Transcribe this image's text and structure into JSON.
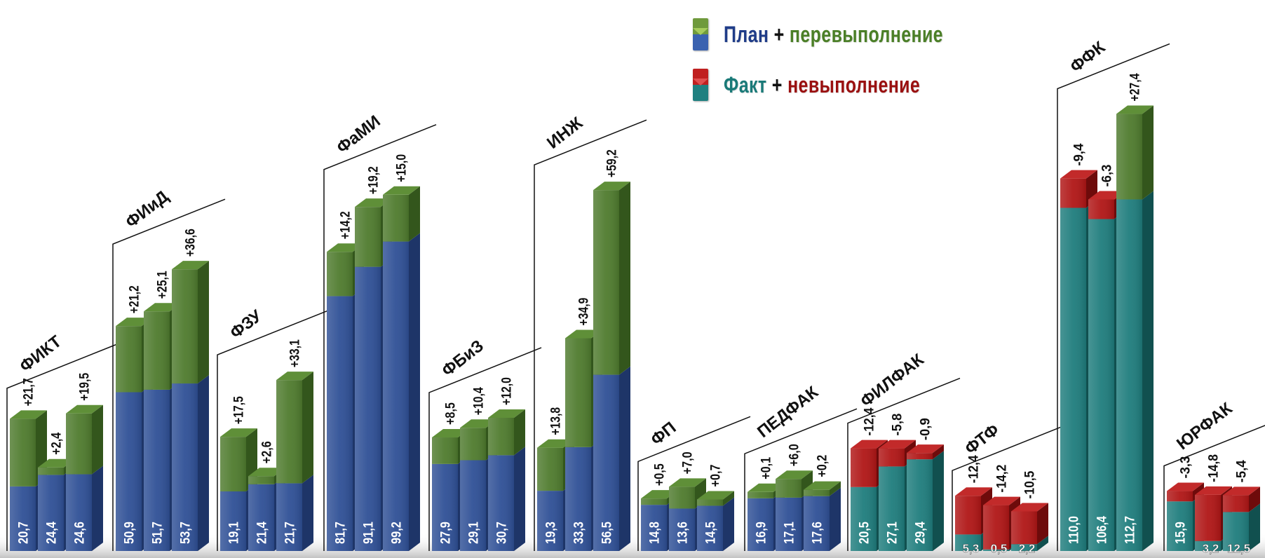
{
  "colors": {
    "plan": "#2f5096",
    "plan_side": "#1e3568",
    "over": "#4f7b2e",
    "over_side": "#33561c",
    "fact": "#1f7d7d",
    "fact_side": "#11504f",
    "under": "#b01616",
    "under_side": "#6e0b0b",
    "plan_text": "#1f3c88",
    "over_text": "#4b7f27",
    "fact_text": "#1a7a78",
    "under_text": "#9a1010"
  },
  "legend": {
    "row1": {
      "a": "План",
      "plus": "+",
      "b": "перевыполнение"
    },
    "row2": {
      "a": "Факт",
      "plus": "+",
      "b": "невыполнение"
    }
  },
  "chart_data": {
    "type": "bar",
    "description_units": "stacked base value + delta per bar",
    "groups": [
      {
        "name": "ФИКТ",
        "kind": "plan",
        "bars": [
          {
            "base": "20,7",
            "delta": "+21,7"
          },
          {
            "base": "24,4",
            "delta": "+2,4"
          },
          {
            "base": "24,6",
            "delta": "+19,5"
          }
        ]
      },
      {
        "name": "ФИиД",
        "kind": "plan",
        "bars": [
          {
            "base": "50,9",
            "delta": "+21,2"
          },
          {
            "base": "51,7",
            "delta": "+25,1"
          },
          {
            "base": "53,7",
            "delta": "+36,6"
          }
        ]
      },
      {
        "name": "ФЗУ",
        "kind": "plan",
        "bars": [
          {
            "base": "19,1",
            "delta": "+17,5"
          },
          {
            "base": "21,4",
            "delta": "+2,6"
          },
          {
            "base": "21,7",
            "delta": "+33,1"
          }
        ]
      },
      {
        "name": "ФаМИ",
        "kind": "plan",
        "bars": [
          {
            "base": "81,7",
            "delta": "+14,2"
          },
          {
            "base": "91,1",
            "delta": "+19,2"
          },
          {
            "base": "99,2",
            "delta": "+15,0"
          }
        ]
      },
      {
        "name": "ФБиЗ",
        "kind": "plan",
        "bars": [
          {
            "base": "27,9",
            "delta": "+8,5"
          },
          {
            "base": "29,1",
            "delta": "+10,4"
          },
          {
            "base": "30,7",
            "delta": "+12,0"
          }
        ]
      },
      {
        "name": "ИНЖ",
        "kind": "plan",
        "bars": [
          {
            "base": "19,3",
            "delta": "+13,8"
          },
          {
            "base": "33,3",
            "delta": "+34,9"
          },
          {
            "base": "56,5",
            "delta": "+59,2"
          }
        ]
      },
      {
        "name": "ФП",
        "kind": "plan",
        "bars": [
          {
            "base": "14,8",
            "delta": "+0,5"
          },
          {
            "base": "13,6",
            "delta": "+7,0"
          },
          {
            "base": "14,5",
            "delta": "+0,7"
          }
        ]
      },
      {
        "name": "ПЕДФАК",
        "kind": "plan",
        "bars": [
          {
            "base": "16,9",
            "delta": "+0,1"
          },
          {
            "base": "17,1",
            "delta": "+6,0"
          },
          {
            "base": "17,6",
            "delta": "+0,2"
          }
        ]
      },
      {
        "name": "ФИЛФАК",
        "kind": "fact",
        "bars": [
          {
            "base": "20,5",
            "delta": "-12,4"
          },
          {
            "base": "27,1",
            "delta": "-5,8"
          },
          {
            "base": "29,4",
            "delta": "-0,9"
          }
        ]
      },
      {
        "name": "ФТФ",
        "kind": "fact",
        "bars": [
          {
            "base": "5,3",
            "delta": "-12,4"
          },
          {
            "base": "0,5",
            "delta": "-14,2"
          },
          {
            "base": "2,2",
            "delta": "-10,5"
          }
        ]
      },
      {
        "name": "ФФК",
        "kind": "fact",
        "bars": [
          {
            "base": "110,0",
            "delta": "-9,4"
          },
          {
            "base": "106,4",
            "delta": "-6,3"
          },
          {
            "base": "112,7",
            "delta": "+27,4",
            "positive": true
          }
        ]
      },
      {
        "name": "ЮРФАК",
        "kind": "fact",
        "bars": [
          {
            "base": "15,9",
            "delta": "-3,3"
          },
          {
            "base": "3,2",
            "delta": "-14,8"
          },
          {
            "base": "12,5",
            "delta": "-5,4"
          }
        ]
      }
    ]
  }
}
